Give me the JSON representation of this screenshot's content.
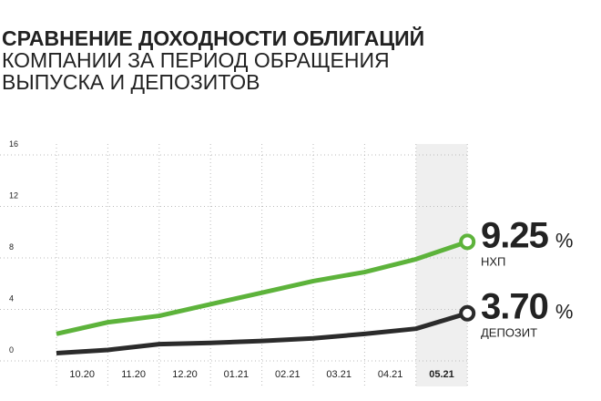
{
  "chart_data": {
    "type": "line",
    "title": "СРАВНЕНИЕ ДОХОДНОСТИ ОБЛИГАЦИЙ",
    "subtitle": [
      "КОМПАНИИ ЗА ПЕРИОД ОБРАЩЕНИЯ",
      "ВЫПУСКА И ДЕПОЗИТОВ"
    ],
    "categories": [
      null,
      "10.20",
      "11.20",
      "12.20",
      "01.21",
      "02.21",
      "03.21",
      "04.21",
      "05.21"
    ],
    "series": [
      {
        "name": "НХП",
        "color": "#5db33b",
        "values": [
          2.1,
          3.0,
          3.5,
          4.4,
          5.3,
          6.2,
          6.9,
          7.9,
          9.25
        ],
        "value_labels": [
          null,
          null,
          null,
          null,
          null,
          null,
          null,
          null,
          "9.25"
        ]
      },
      {
        "name": "ДЕПОЗИТ",
        "color": "#2b2b2b",
        "values": [
          0.6,
          0.85,
          1.3,
          1.4,
          1.55,
          1.75,
          2.1,
          2.5,
          3.7
        ],
        "value_labels": [
          null,
          null,
          null,
          null,
          null,
          null,
          null,
          null,
          "3.70"
        ]
      }
    ],
    "unit": "%",
    "ylim": [
      0,
      16
    ],
    "yticks": [
      0,
      4,
      8,
      12,
      16
    ],
    "grid": true
  }
}
